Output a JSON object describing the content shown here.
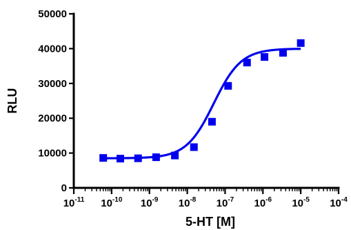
{
  "chart_data": {
    "type": "scatter",
    "title": "",
    "xlabel": "5-HT [M]",
    "ylabel": "RLU",
    "xscale": "log",
    "xlim": [
      1e-11,
      0.0001
    ],
    "ylim": [
      0,
      50000
    ],
    "grid": false,
    "legend": "none",
    "x_tick_base": "10",
    "x_tick_exponents": [
      "-11",
      "-10",
      "-9",
      "-8",
      "-7",
      "-6",
      "-5",
      "-4"
    ],
    "y_tick_labels": [
      "0",
      "10000",
      "20000",
      "30000",
      "40000",
      "50000"
    ],
    "marker_color": "#0000ee",
    "series": [
      {
        "marker": "square",
        "x": [
          6e-11,
          1.7e-10,
          5e-10,
          1.5e-09,
          4.7e-09,
          1.5e-08,
          4.5e-08,
          1.2e-07,
          3.8e-07,
          1.1e-06,
          3.4e-06,
          1e-05
        ],
        "y": [
          8600,
          8400,
          8500,
          8800,
          9300,
          11700,
          19000,
          29300,
          36000,
          37600,
          38800,
          41600
        ]
      }
    ],
    "fit_curve": {
      "type": "sigmoidal dose-response",
      "bottom": 8500,
      "top": 40000,
      "logEC50": -7.3,
      "hillslope": 1.2
    }
  }
}
